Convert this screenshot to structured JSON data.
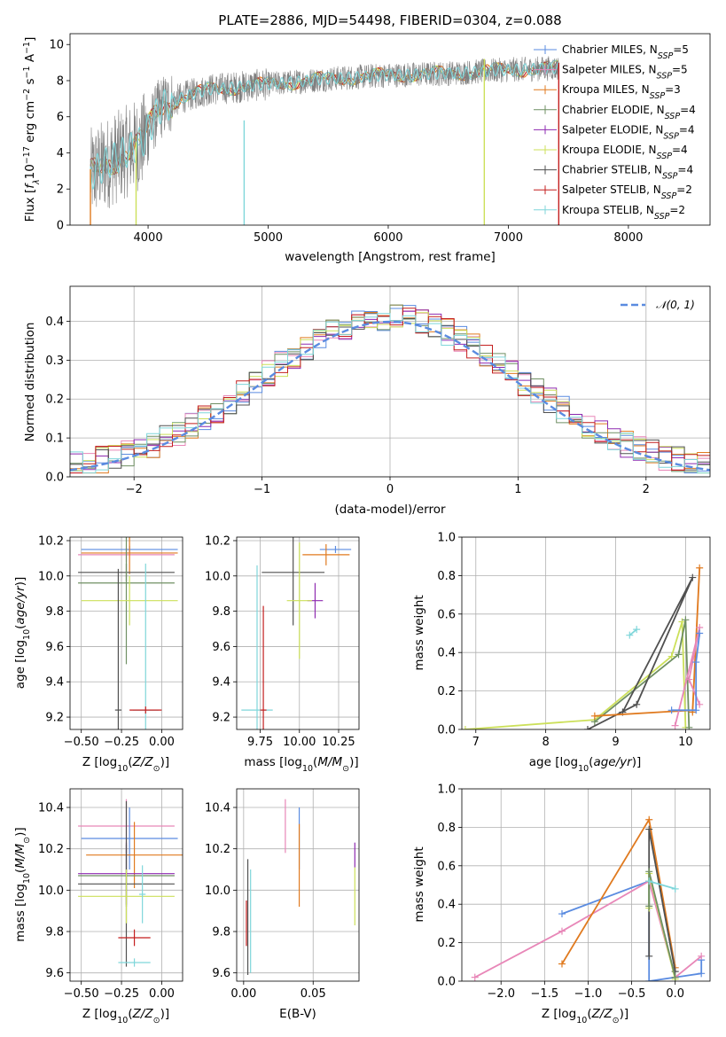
{
  "figure": {
    "title": "PLATE=2886, MJD=54498, FIBERID=0304, z=0.088"
  },
  "colors": {
    "Chabrier MILES": "#5a8be0",
    "Salpeter MILES": "#e887b8",
    "Kroupa MILES": "#e07a1f",
    "Chabrier ELODIE": "#6f8f63",
    "Salpeter ELODIE": "#8e2ab0",
    "Kroupa ELODIE": "#cce05a",
    "Chabrier STELIB": "#505050",
    "Salpeter STELIB": "#c41f1f",
    "Kroupa STELIB": "#7fd6da",
    "data": "#7f7f7f"
  },
  "chart_data": [
    {
      "id": "spectrum",
      "type": "line",
      "title": "PLATE=2886, MJD=54498, FIBERID=0304, z=0.088",
      "xlabel": "wavelength [Angstrom, rest frame]",
      "ylabel": "Flux [f_λ 10^-17 erg cm^-2 s^-1 A^-1]",
      "xlim": [
        3350,
        8680
      ],
      "ylim": [
        0,
        10.6
      ],
      "xticks": [
        4000,
        5000,
        6000,
        7000,
        8000
      ],
      "yticks": [
        0,
        2,
        4,
        6,
        8,
        10
      ],
      "legend_position": "top-right",
      "legend": [
        {
          "base": "Chabrier MILES, N",
          "sub": "SSP",
          "tail": "=5"
        },
        {
          "base": "Salpeter MILES, N",
          "sub": "SSP",
          "tail": "=5"
        },
        {
          "base": "Kroupa MILES, N",
          "sub": "SSP",
          "tail": "=3"
        },
        {
          "base": "Chabrier ELODIE, N",
          "sub": "SSP",
          "tail": "=4"
        },
        {
          "base": "Salpeter ELODIE, N",
          "sub": "SSP",
          "tail": "=4"
        },
        {
          "base": "Kroupa ELODIE, N",
          "sub": "SSP",
          "tail": "=4"
        },
        {
          "base": "Chabrier STELIB, N",
          "sub": "SSP",
          "tail": "=4"
        },
        {
          "base": "Salpeter STELIB, N",
          "sub": "SSP",
          "tail": "=2"
        },
        {
          "base": "Kroupa STELIB, N",
          "sub": "SSP",
          "tail": "=2"
        }
      ],
      "continuum": [
        [
          3520,
          2.8
        ],
        [
          3650,
          3.4
        ],
        [
          3800,
          4.0
        ],
        [
          3950,
          4.6
        ],
        [
          4100,
          6.5
        ],
        [
          4300,
          7.1
        ],
        [
          4500,
          7.5
        ],
        [
          5000,
          7.8
        ],
        [
          5500,
          8.1
        ],
        [
          6000,
          8.3
        ],
        [
          6500,
          8.4
        ],
        [
          7000,
          8.6
        ],
        [
          7420,
          8.7
        ]
      ],
      "sharp_lines": [
        {
          "x": 4800,
          "ymax": 5.8,
          "series": "Kroupa STELIB"
        },
        {
          "x": 6800,
          "ymax": 9.2,
          "series": "Kroupa ELODIE"
        },
        {
          "x": 7420,
          "ymax": 9.0,
          "series": "Salpeter STELIB"
        },
        {
          "x": 3520,
          "ymax": 3.1,
          "series": "Kroupa MILES"
        },
        {
          "x": 3900,
          "ymax": 4.6,
          "series": "Kroupa ELODIE"
        }
      ]
    },
    {
      "id": "residuals",
      "type": "histogram",
      "xlabel": "(data-model)/error",
      "ylabel": "Normed distribution",
      "xlim": [
        -2.5,
        2.5
      ],
      "ylim": [
        0,
        0.49
      ],
      "xticks": [
        -2,
        -1,
        0,
        1,
        2
      ],
      "yticks": [
        0.0,
        0.1,
        0.2,
        0.3,
        0.4
      ],
      "grid": true,
      "legend_position": "top-right",
      "reference": {
        "label": "𝒩(0, 1)",
        "type": "gaussian",
        "mu": 0,
        "sigma": 1
      },
      "bin_width": 0.1
    },
    {
      "id": "age-vs-Z",
      "type": "errorbar",
      "xlabel": "Z [log10(Z/Z☉)]",
      "ylabel": "age [log10(age/yr)]",
      "xlim": [
        -0.57,
        0.13
      ],
      "ylim": [
        9.13,
        10.22
      ],
      "xticks": [
        -0.5,
        -0.25,
        0.0
      ],
      "xticklabels": [
        "−0.50",
        "−0.25",
        "0.00"
      ],
      "yticks": [
        9.2,
        9.4,
        9.6,
        9.8,
        10.0,
        10.2
      ],
      "grid": true,
      "points": [
        {
          "series": "Chabrier MILES",
          "x": -0.2,
          "y": 10.15,
          "xerr": 0.3,
          "yerr": 0.02
        },
        {
          "series": "Salpeter MILES",
          "x": -0.22,
          "y": 10.12,
          "xerr": 0.3,
          "yerr": 0.04
        },
        {
          "series": "Kroupa MILES",
          "x": -0.2,
          "y": 10.13,
          "xerr": 0.3,
          "yerr": 0.12
        },
        {
          "series": "Chabrier STELIB",
          "x": -0.22,
          "y": 10.02,
          "xerr": 0.3,
          "yerr": 0.05
        },
        {
          "series": "Chabrier ELODIE",
          "x": -0.22,
          "y": 9.96,
          "xerr": 0.3,
          "yerr": 0.46
        },
        {
          "series": "Kroupa ELODIE",
          "x": -0.2,
          "y": 9.86,
          "xerr": 0.3,
          "yerr": 0.14
        },
        {
          "series": "Kroupa STELIB",
          "x": -0.1,
          "y": 9.24,
          "xerr": 0.08,
          "yerr": 0.83
        },
        {
          "series": "Salpeter STELIB",
          "x": -0.1,
          "y": 9.24,
          "xerr": 0.1,
          "yerr": 0.02
        },
        {
          "series": "Chabrier STELIB",
          "x": -0.27,
          "y": 9.24,
          "xerr": 0.02,
          "yerr": 0.8
        }
      ]
    },
    {
      "id": "age-vs-mass",
      "type": "errorbar",
      "xlabel": "mass [log10(M/M☉)]",
      "ylabel": "",
      "xlim": [
        9.6,
        10.38
      ],
      "ylim": [
        9.13,
        10.22
      ],
      "xticks": [
        9.75,
        10.0,
        10.25
      ],
      "xticklabels": [
        "9.75",
        "10.00",
        "10.25"
      ],
      "yticks": [
        9.2,
        9.4,
        9.6,
        9.8,
        10.0,
        10.2
      ],
      "grid": true,
      "points": [
        {
          "series": "Chabrier MILES",
          "x": 10.23,
          "y": 10.15,
          "xerr": 0.1,
          "yerr": 0.02
        },
        {
          "series": "Kroupa MILES",
          "x": 10.17,
          "y": 10.12,
          "xerr": 0.15,
          "yerr": 0.06
        },
        {
          "series": "Chabrier STELIB",
          "x": 9.96,
          "y": 10.02,
          "xerr": 0.2,
          "yerr": 0.3
        },
        {
          "series": "Salpeter ELODIE",
          "x": 10.1,
          "y": 9.86,
          "xerr": 0.05,
          "yerr": 0.1
        },
        {
          "series": "Kroupa ELODIE",
          "x": 10.0,
          "y": 9.86,
          "xerr": 0.08,
          "yerr": 0.33
        },
        {
          "series": "Kroupa STELIB",
          "x": 9.73,
          "y": 9.24,
          "xerr": 0.1,
          "yerr": 0.82
        },
        {
          "series": "Salpeter STELIB",
          "x": 9.77,
          "y": 9.24,
          "xerr": 0.02,
          "yerr": 0.59
        }
      ]
    },
    {
      "id": "weight-vs-age",
      "type": "line",
      "xlabel": "age [log10(age/yr)]",
      "ylabel": "mass weight",
      "xlim": [
        6.8,
        10.35
      ],
      "ylim": [
        0,
        1
      ],
      "xticks": [
        7,
        8,
        9,
        10
      ],
      "yticks": [
        0.0,
        0.2,
        0.4,
        0.6,
        0.8,
        1.0
      ],
      "grid": true,
      "series": [
        {
          "name": "Kroupa ELODIE",
          "points": [
            [
              6.85,
              0.0
            ],
            [
              8.7,
              0.05
            ],
            [
              9.8,
              0.38
            ],
            [
              9.95,
              0.56
            ],
            [
              10.0,
              0.01
            ]
          ]
        },
        {
          "name": "Chabrier ELODIE",
          "points": [
            [
              8.7,
              0.04
            ],
            [
              9.9,
              0.39
            ],
            [
              10.0,
              0.57
            ],
            [
              10.05,
              0.01
            ]
          ]
        },
        {
          "name": "Chabrier STELIB",
          "points": [
            [
              8.6,
              0.0
            ],
            [
              9.3,
              0.13
            ],
            [
              10.1,
              0.79
            ],
            [
              9.1,
              0.09
            ]
          ]
        },
        {
          "name": "Kroupa MILES",
          "points": [
            [
              8.7,
              0.07
            ],
            [
              10.1,
              0.1
            ],
            [
              10.2,
              0.84
            ],
            [
              10.1,
              0.09
            ]
          ]
        },
        {
          "name": "Salpeter MILES",
          "points": [
            [
              9.85,
              0.02
            ],
            [
              10.2,
              0.53
            ],
            [
              10.05,
              0.26
            ],
            [
              10.2,
              0.13
            ]
          ]
        },
        {
          "name": "Chabrier MILES",
          "points": [
            [
              9.8,
              0.1
            ],
            [
              10.15,
              0.1
            ],
            [
              10.15,
              0.35
            ],
            [
              10.2,
              0.5
            ]
          ]
        },
        {
          "name": "Kroupa STELIB",
          "points": [
            [
              9.2,
              0.49
            ],
            [
              9.3,
              0.52
            ]
          ]
        }
      ]
    },
    {
      "id": "mass-vs-Z",
      "type": "errorbar",
      "xlabel": "Z [log10(Z/Z☉)]",
      "ylabel": "mass [log10(M/M☉)]",
      "xlim": [
        -0.57,
        0.13
      ],
      "ylim": [
        9.56,
        10.49
      ],
      "xticks": [
        -0.5,
        -0.25,
        0.0
      ],
      "xticklabels": [
        "−0.50",
        "−0.25",
        "0.00"
      ],
      "yticks": [
        9.6,
        9.8,
        10.0,
        10.2,
        10.4
      ],
      "grid": true,
      "points": [
        {
          "series": "Salpeter MILES",
          "x": -0.22,
          "y": 10.31,
          "xerr": 0.3,
          "yerr": 0.13
        },
        {
          "series": "Chabrier MILES",
          "x": -0.2,
          "y": 10.25,
          "xerr": 0.3,
          "yerr": 0.15
        },
        {
          "series": "Kroupa MILES",
          "x": -0.17,
          "y": 10.17,
          "xerr": 0.3,
          "yerr": 0.16
        },
        {
          "series": "Salpeter ELODIE",
          "x": -0.22,
          "y": 10.08,
          "xerr": 0.3,
          "yerr": 0.15
        },
        {
          "series": "Chabrier ELODIE",
          "x": -0.22,
          "y": 10.07,
          "xerr": 0.3,
          "yerr": 0.15
        },
        {
          "series": "Chabrier STELIB",
          "x": -0.22,
          "y": 10.03,
          "xerr": 0.3,
          "yerr": 0.4
        },
        {
          "series": "Kroupa ELODIE",
          "x": -0.22,
          "y": 9.97,
          "xerr": 0.3,
          "yerr": 0.13
        },
        {
          "series": "Kroupa STELIB",
          "x": -0.12,
          "y": 9.98,
          "xerr": 0.02,
          "yerr": 0.14
        },
        {
          "series": "Salpeter STELIB",
          "x": -0.17,
          "y": 9.77,
          "xerr": 0.1,
          "yerr": 0.04
        },
        {
          "series": "Kroupa STELIB",
          "x": -0.17,
          "y": 9.65,
          "xerr": 0.1,
          "yerr": 0.02
        }
      ]
    },
    {
      "id": "mass-vs-EBV",
      "type": "errorbar",
      "xlabel": "E(B-V)",
      "ylabel": "",
      "xlim": [
        -0.005,
        0.083
      ],
      "ylim": [
        9.56,
        10.49
      ],
      "xticks": [
        0.0,
        0.05
      ],
      "xticklabels": [
        "0.00",
        "0.05"
      ],
      "yticks": [
        9.6,
        9.8,
        10.0,
        10.2,
        10.4
      ],
      "grid": true,
      "points": [
        {
          "series": "Salpeter MILES",
          "x": 0.03,
          "y": 10.31,
          "xerr": 0,
          "yerr": 0.13
        },
        {
          "series": "Chabrier MILES",
          "x": 0.04,
          "y": 10.25,
          "xerr": 0,
          "yerr": 0.15
        },
        {
          "series": "Kroupa MILES",
          "x": 0.04,
          "y": 10.12,
          "xerr": 0,
          "yerr": 0.2
        },
        {
          "series": "Salpeter ELODIE",
          "x": 0.08,
          "y": 10.17,
          "xerr": 0,
          "yerr": 0.06
        },
        {
          "series": "Kroupa ELODIE",
          "x": 0.08,
          "y": 9.97,
          "xerr": 0,
          "yerr": 0.14
        },
        {
          "series": "Chabrier STELIB",
          "x": 0.003,
          "y": 9.87,
          "xerr": 0,
          "yerr": 0.28
        },
        {
          "series": "Salpeter STELIB",
          "x": 0.002,
          "y": 9.84,
          "xerr": 0,
          "yerr": 0.11
        },
        {
          "series": "Kroupa STELIB",
          "x": 0.005,
          "y": 9.85,
          "xerr": 0,
          "yerr": 0.25
        }
      ]
    },
    {
      "id": "weight-vs-Z",
      "type": "line",
      "xlabel": "Z [log10(Z/Z☉)]",
      "ylabel": "mass weight",
      "xlim": [
        -2.45,
        0.4
      ],
      "ylim": [
        0,
        1
      ],
      "xticks": [
        -2.0,
        -1.5,
        -1.0,
        -0.5,
        0.0
      ],
      "xticklabels": [
        "−2.0",
        "−1.5",
        "−1.0",
        "−0.5",
        "0.0"
      ],
      "yticks": [
        0.0,
        0.2,
        0.4,
        0.6,
        0.8,
        1.0
      ],
      "grid": true,
      "series": [
        {
          "name": "Chabrier MILES",
          "points": [
            [
              -1.3,
              0.35
            ],
            [
              -0.3,
              0.52
            ],
            [
              -0.3,
              0.0
            ],
            [
              0.3,
              0.04
            ],
            [
              0.3,
              0.11
            ]
          ]
        },
        {
          "name": "Salpeter MILES",
          "points": [
            [
              -2.3,
              0.02
            ],
            [
              -1.3,
              0.26
            ],
            [
              -0.3,
              0.52
            ],
            [
              0.0,
              0.02
            ],
            [
              0.3,
              0.13
            ]
          ]
        },
        {
          "name": "Kroupa MILES",
          "points": [
            [
              -1.3,
              0.09
            ],
            [
              -0.3,
              0.84
            ],
            [
              0.0,
              0.07
            ]
          ]
        },
        {
          "name": "Chabrier STELIB",
          "points": [
            [
              -0.3,
              0.13
            ],
            [
              -0.3,
              0.79
            ],
            [
              0.0,
              0.05
            ]
          ]
        },
        {
          "name": "Kroupa ELODIE",
          "points": [
            [
              -0.3,
              0.38
            ],
            [
              -0.3,
              0.56
            ],
            [
              0.0,
              0.01
            ]
          ]
        },
        {
          "name": "Chabrier ELODIE",
          "points": [
            [
              -0.3,
              0.39
            ],
            [
              -0.3,
              0.57
            ],
            [
              0.0,
              0.02
            ]
          ]
        },
        {
          "name": "Kroupa STELIB",
          "points": [
            [
              -0.3,
              0.52
            ],
            [
              0.0,
              0.48
            ]
          ]
        }
      ]
    }
  ]
}
